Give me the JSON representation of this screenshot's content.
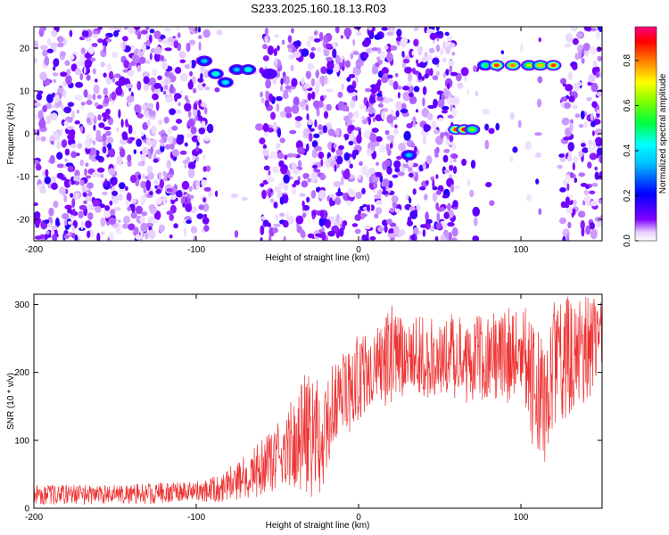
{
  "title": "S233.2025.160.18.13.R03",
  "chart_data": [
    {
      "type": "heatmap",
      "title": "S233.2025.160.18.13.R03",
      "xlabel": "Height of straight line (km)",
      "ylabel": "Frequency (Hz)",
      "xlim": [
        -200,
        150
      ],
      "ylim": [
        -25,
        25
      ],
      "x_ticks": [
        -200,
        -100,
        0,
        100
      ],
      "y_ticks": [
        -20,
        -10,
        0,
        10,
        20
      ],
      "colorbar": {
        "label": "Normalized spectral amplitude",
        "range": [
          0,
          0.95
        ],
        "ticks": [
          0,
          0.2,
          0.4,
          0.6,
          0.8
        ],
        "tick_labels": [
          "0.0",
          "0.2",
          "0.4",
          "0.6",
          "0.8"
        ],
        "colors": [
          "#ffffff",
          "#8000ff",
          "#0000ff",
          "#00ffff",
          "#00ff00",
          "#ffff00",
          "#ff8000",
          "#ff0000",
          "#ff0080"
        ]
      },
      "blank_regions": [
        [
          -93,
          -60
        ],
        [
          60,
          72
        ],
        [
          73,
          125
        ]
      ],
      "hot_spots": [
        {
          "x": -95,
          "y": 17,
          "value": 0.35
        },
        {
          "x": -88,
          "y": 14,
          "value": 0.45
        },
        {
          "x": -82,
          "y": 12,
          "value": 0.4
        },
        {
          "x": -75,
          "y": 15,
          "value": 0.35
        },
        {
          "x": -68,
          "y": 15,
          "value": 0.45
        },
        {
          "x": -55,
          "y": 14,
          "value": 0.15
        },
        {
          "x": 31,
          "y": -5,
          "value": 0.35
        },
        {
          "x": 60,
          "y": 1,
          "value": 0.85
        },
        {
          "x": 65,
          "y": 1,
          "value": 0.9
        },
        {
          "x": 70,
          "y": 1,
          "value": 0.6
        },
        {
          "x": 78,
          "y": 16,
          "value": 0.5
        },
        {
          "x": 85,
          "y": 16,
          "value": 0.85
        },
        {
          "x": 95,
          "y": 16,
          "value": 0.8
        },
        {
          "x": 105,
          "y": 16,
          "value": 0.65
        },
        {
          "x": 112,
          "y": 16,
          "value": 0.75
        },
        {
          "x": 120,
          "y": 16,
          "value": 0.85
        }
      ]
    },
    {
      "type": "line",
      "title": "",
      "xlabel": "Height of straight line (km)",
      "ylabel": "SNR (10 * v/v)",
      "xlim": [
        -200,
        150
      ],
      "ylim": [
        0,
        315
      ],
      "x_ticks": [
        -200,
        -100,
        0,
        100
      ],
      "y_ticks": [
        0,
        100,
        200,
        300
      ],
      "series": [
        {
          "color": "#ee3333",
          "envelope_x": [
            -200,
            -150,
            -100,
            -85,
            -75,
            -65,
            -55,
            -45,
            -35,
            -25,
            -20,
            -15,
            -10,
            -5,
            0,
            10,
            20,
            30,
            40,
            50,
            60,
            70,
            80,
            90,
            100,
            110,
            115,
            120,
            130,
            140,
            150
          ],
          "envelope_low": [
            5,
            5,
            8,
            8,
            12,
            15,
            20,
            25,
            15,
            10,
            40,
            70,
            90,
            110,
            130,
            150,
            150,
            170,
            150,
            170,
            160,
            150,
            160,
            150,
            170,
            60,
            50,
            120,
            130,
            150,
            200
          ],
          "envelope_high": [
            35,
            35,
            40,
            50,
            75,
            90,
            110,
            140,
            200,
            210,
            180,
            240,
            230,
            235,
            260,
            260,
            300,
            270,
            290,
            275,
            290,
            280,
            290,
            300,
            310,
            290,
            220,
            310,
            315,
            315,
            315
          ]
        }
      ]
    }
  ]
}
